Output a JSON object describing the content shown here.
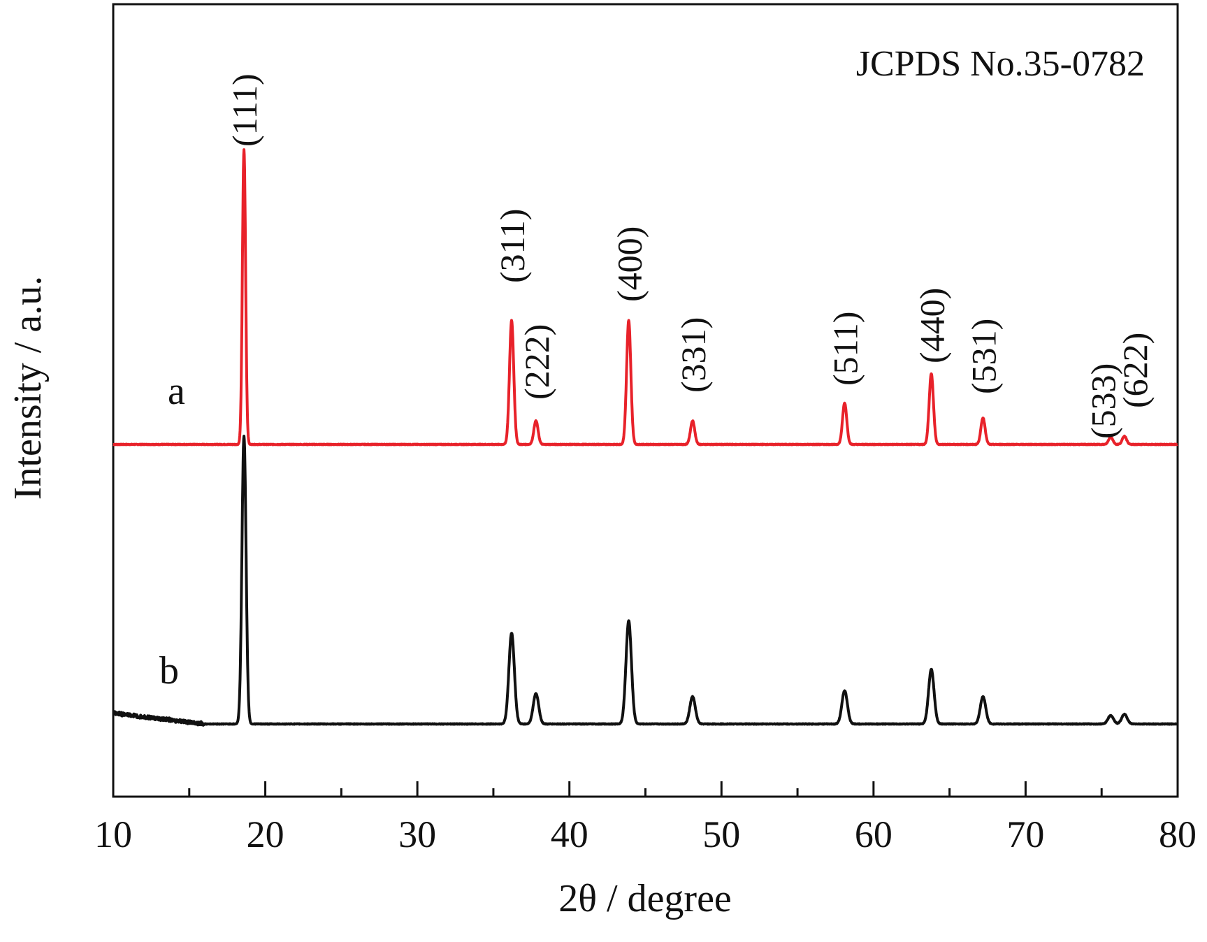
{
  "chart_data": {
    "type": "line",
    "title": "",
    "xlabel": "2θ / degree",
    "ylabel": "Intensity / a.u.",
    "xlim": [
      10,
      80
    ],
    "x_ticks": [
      "10",
      "20",
      "30",
      "40",
      "50",
      "60",
      "70",
      "80"
    ],
    "grid": false,
    "legend": "none",
    "reference_annotation": "JCPDS No.35-0782",
    "peak_positions": [
      18.6,
      36.2,
      37.8,
      43.9,
      48.1,
      58.1,
      63.8,
      67.2,
      75.6,
      76.5
    ],
    "peak_annotations": [
      {
        "label": "(111)",
        "x": 18.6
      },
      {
        "label": "(311)",
        "x": 36.2
      },
      {
        "label": "(222)",
        "x": 37.8
      },
      {
        "label": "(400)",
        "x": 43.9
      },
      {
        "label": "(331)",
        "x": 48.1
      },
      {
        "label": "(511)",
        "x": 58.1
      },
      {
        "label": "(440)",
        "x": 63.8
      },
      {
        "label": "(531)",
        "x": 67.2
      },
      {
        "label": "(533)",
        "x": 75.6
      },
      {
        "label": "(622)",
        "x": 76.5
      }
    ],
    "series": [
      {
        "name": "a",
        "color": "#e8222a",
        "peak_heights": [
          100,
          42,
          8,
          42,
          8,
          14,
          24,
          9,
          2.5,
          2.8
        ]
      },
      {
        "name": "b",
        "color": "#111111",
        "peak_heights": [
          95,
          30,
          10,
          34,
          9,
          11,
          18,
          9,
          2.8,
          3.2
        ]
      }
    ]
  }
}
